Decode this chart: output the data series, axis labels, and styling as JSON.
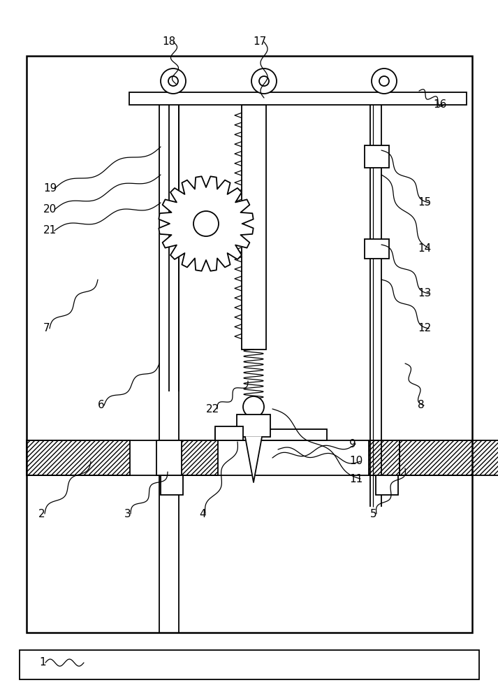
{
  "bg_color": "#ffffff",
  "line_color": "#000000",
  "fig_width": 7.13,
  "fig_height": 10.0,
  "lw": 1.3,
  "lw_thin": 0.9,
  "lw_thick": 1.8
}
